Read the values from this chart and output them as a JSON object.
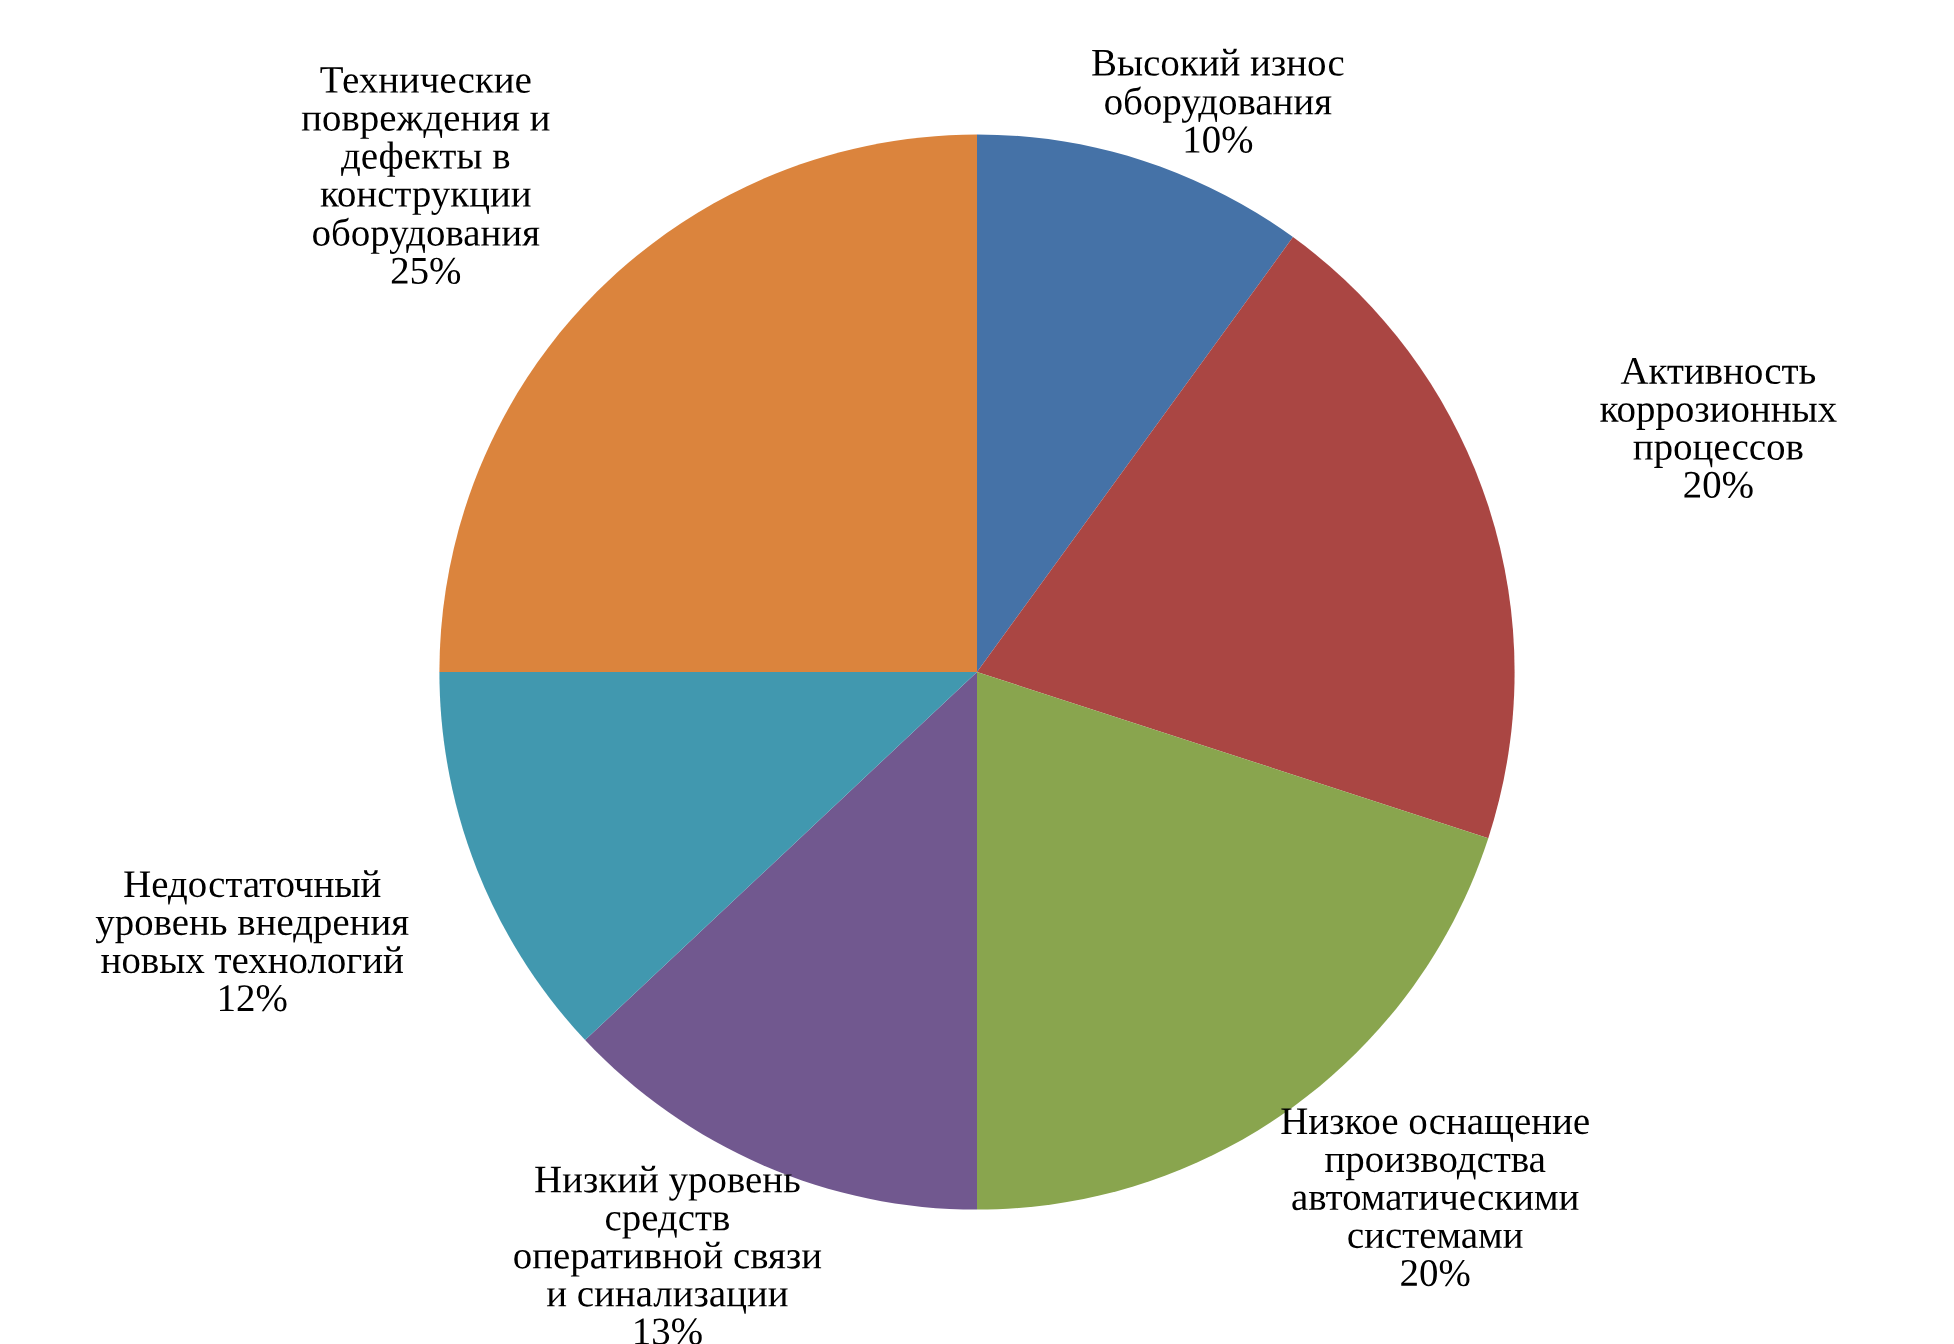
{
  "chart_data": {
    "type": "pie",
    "categories": [
      "Высокий износ\nоборудования",
      "Активность\nкоррозионных\nпроцессов",
      "Низкое оснащение\nпроизводства\nавтоматическими\nсистемами",
      "Низкий уровень\nсредств\nоперативной связи\nи синализации",
      "Недостаточный\nуровень внедрения\nновых технологий",
      "Технические\nповреждения и\nдефекты в\nконструкции\nоборудования"
    ],
    "values": [
      10,
      20,
      20,
      13,
      12,
      25
    ],
    "value_labels": [
      "10%",
      "20%",
      "20%",
      "13%",
      "12%",
      "25%"
    ],
    "colors": [
      "#4572a7",
      "#aa4643",
      "#89a54e",
      "#71588f",
      "#4198af",
      "#db843d"
    ]
  }
}
